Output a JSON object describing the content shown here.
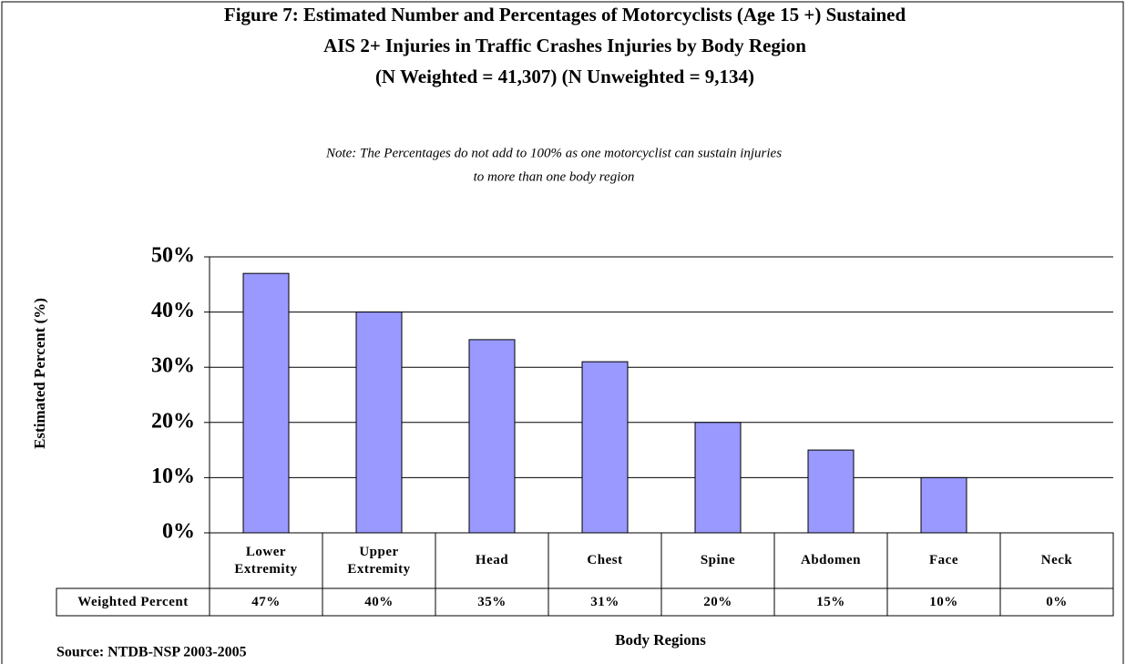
{
  "chart_data": {
    "type": "bar",
    "title": [
      "Figure 7: Estimated Number and Percentages of Motorcyclists (Age 15 +) Sustained",
      "AIS 2+ Injuries in Traffic Crashes Injuries by Body Region",
      "(N Weighted = 41,307)  (N Unweighted = 9,134)"
    ],
    "note": [
      "Note: The Percentages do not add to 100% as one motorcyclist can sustain injuries",
      "to more than one body region"
    ],
    "ylabel": "Estimated Percent (%)",
    "xlabel": "Body Regions",
    "source": "Source: NTDB-NSP 2003-2005",
    "table_row_label": "Weighted Percent",
    "categories": [
      "Lower Extremity",
      "Upper Extremity",
      "Head",
      "Chest",
      "Spine",
      "Abdomen",
      "Face",
      "Neck"
    ],
    "values": [
      47,
      40,
      35,
      31,
      20,
      15,
      10,
      0
    ],
    "value_labels": [
      "47%",
      "40%",
      "35%",
      "31%",
      "20%",
      "15%",
      "10%",
      "0%"
    ],
    "color": "#9999ff",
    "ylim": [
      0,
      50
    ],
    "yticks": [
      {
        "value": 0,
        "label": "0%"
      },
      {
        "value": 10,
        "label": "10%"
      },
      {
        "value": 20,
        "label": "20%"
      },
      {
        "value": 30,
        "label": "30%"
      },
      {
        "value": 40,
        "label": "40%"
      },
      {
        "value": 50,
        "label": "50%"
      }
    ],
    "grid": true
  }
}
